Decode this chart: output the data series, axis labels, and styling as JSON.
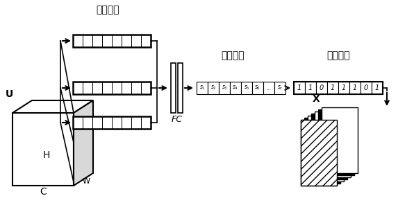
{
  "bg_color": "#ffffff",
  "label_quanjuchun": "全局池化",
  "label_tongdaobi": "通道比乘",
  "label_tongdaomazhu": "通道掩码",
  "label_FC": "FC",
  "label_U": "U",
  "label_H": "H",
  "label_W": "W",
  "label_C": "C",
  "label_X": "X",
  "ratio_labels": [
    "$s_1$",
    "$s_2$",
    "$s_3$",
    "$s_4$",
    "$s_5$",
    "$s_6$",
    "...",
    "$s_c$"
  ],
  "mask_values": [
    "1",
    "1",
    "0",
    "1",
    "1",
    "1",
    "0",
    "1"
  ]
}
